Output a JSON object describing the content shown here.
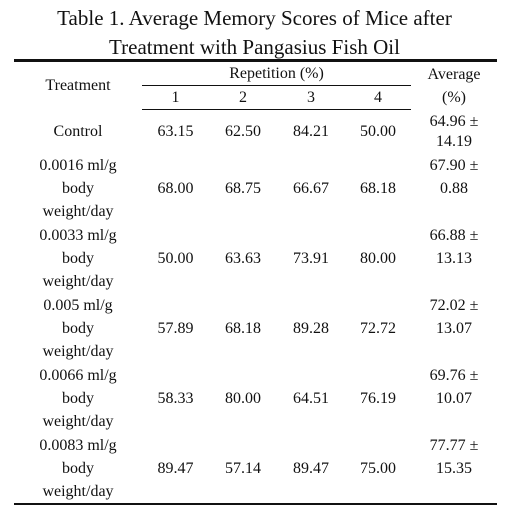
{
  "title": "Table 1. Average Memory Scores of Mice after Treatment with Pangasius Fish Oil",
  "table": {
    "header": {
      "treatment": "Treatment",
      "repetition": "Repetition (%)",
      "repetitions": [
        "1",
        "2",
        "3",
        "4"
      ],
      "average": "Average (%)"
    },
    "rows": [
      [
        "Control",
        "63.15",
        "62.50",
        "84.21",
        "50.00",
        "64.96 ± 14.19"
      ],
      [
        "0.0016 ml/g body weight/day",
        "68.00",
        "68.75",
        "66.67",
        "68.18",
        "67.90 ± 0.88"
      ],
      [
        "0.0033 ml/g body weight/day",
        "50.00",
        "63.63",
        "73.91",
        "80.00",
        "66.88 ± 13.13"
      ],
      [
        "0.005 ml/g body weight/day",
        "57.89",
        "68.18",
        "89.28",
        "72.72",
        "72.02 ± 13.07"
      ],
      [
        "0.0066 ml/g body weight/day",
        "58.33",
        "80.00",
        "64.51",
        "76.19",
        "69.76 ± 10.07"
      ],
      [
        "0.0083 ml/g body weight/day",
        "89.47",
        "57.14",
        "89.47",
        "75.00",
        "77.77 ± 15.35"
      ]
    ]
  }
}
